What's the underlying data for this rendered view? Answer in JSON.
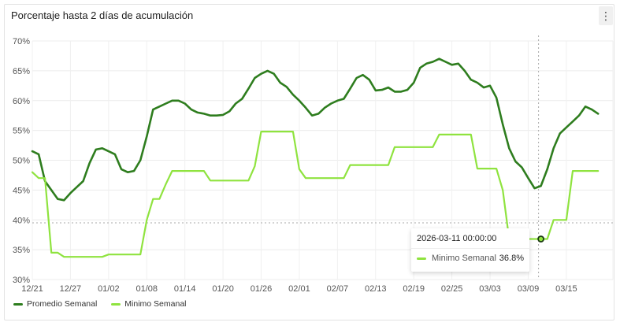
{
  "title": "Porcentaje hasta 2 días de acumulación",
  "menu_icon": "kebab-menu-icon",
  "colors": {
    "promedio": "#2e7d1e",
    "minimo": "#8fe33f"
  },
  "tooltip": {
    "date": "2026-03-11 00:00:00",
    "series": "Minimo Semanal",
    "value": "36.8%"
  },
  "chart_data": {
    "type": "line",
    "title": "Porcentaje hasta 2 días de acumulación",
    "xlabel": "",
    "ylabel": "",
    "ylim": [
      30,
      70
    ],
    "yticks": [
      "30%",
      "35%",
      "40%",
      "45%",
      "50%",
      "55%",
      "60%",
      "65%",
      "70%"
    ],
    "xticks": [
      "12/21",
      "12/27",
      "01/02",
      "01/08",
      "01/14",
      "01/20",
      "01/26",
      "02/01",
      "02/07",
      "02/13",
      "02/19",
      "02/25",
      "03/03",
      "03/09",
      "03/15"
    ],
    "grid": true,
    "legend": "bottom-left",
    "x": [
      "2025-12-21",
      "2025-12-22",
      "2025-12-23",
      "2025-12-24",
      "2025-12-25",
      "2025-12-26",
      "2025-12-27",
      "2025-12-28",
      "2025-12-29",
      "2025-12-30",
      "2025-12-31",
      "2026-01-01",
      "2026-01-02",
      "2026-01-03",
      "2026-01-04",
      "2026-01-05",
      "2026-01-06",
      "2026-01-07",
      "2026-01-08",
      "2026-01-09",
      "2026-01-10",
      "2026-01-11",
      "2026-01-12",
      "2026-01-13",
      "2026-01-14",
      "2026-01-15",
      "2026-01-16",
      "2026-01-17",
      "2026-01-18",
      "2026-01-19",
      "2026-01-20",
      "2026-01-21",
      "2026-01-22",
      "2026-01-23",
      "2026-01-24",
      "2026-01-25",
      "2026-01-26",
      "2026-01-27",
      "2026-01-28",
      "2026-01-29",
      "2026-01-30",
      "2026-01-31",
      "2026-02-01",
      "2026-02-02",
      "2026-02-03",
      "2026-02-04",
      "2026-02-05",
      "2026-02-06",
      "2026-02-07",
      "2026-02-08",
      "2026-02-09",
      "2026-02-10",
      "2026-02-11",
      "2026-02-12",
      "2026-02-13",
      "2026-02-14",
      "2026-02-15",
      "2026-02-16",
      "2026-02-17",
      "2026-02-18",
      "2026-02-19",
      "2026-02-20",
      "2026-02-21",
      "2026-02-22",
      "2026-02-23",
      "2026-02-24",
      "2026-02-25",
      "2026-02-26",
      "2026-02-27",
      "2026-02-28",
      "2026-03-01",
      "2026-03-02",
      "2026-03-03",
      "2026-03-04",
      "2026-03-05",
      "2026-03-06",
      "2026-03-07",
      "2026-03-08",
      "2026-03-09",
      "2026-03-10",
      "2026-03-11",
      "2026-03-12",
      "2026-03-13",
      "2026-03-14",
      "2026-03-15",
      "2026-03-16",
      "2026-03-17",
      "2026-03-18",
      "2026-03-19",
      "2026-03-20"
    ],
    "series": [
      {
        "name": "Promedio Semanal",
        "color": "#2e7d1e",
        "values": [
          51.5,
          51,
          46.5,
          45,
          43.5,
          43.3,
          44.5,
          45.5,
          46.5,
          49.5,
          51.8,
          52,
          51.5,
          51,
          48.5,
          48,
          48.2,
          50,
          54,
          58.5,
          59,
          59.5,
          60,
          60,
          59.5,
          58.5,
          58,
          57.8,
          57.5,
          57.5,
          57.6,
          58.2,
          59.5,
          60.3,
          62,
          63.8,
          64.5,
          65,
          64.5,
          63,
          62.3,
          61,
          60,
          58.8,
          57.5,
          57.8,
          58.8,
          59.5,
          60,
          60.3,
          62,
          63.8,
          64.3,
          63.5,
          61.7,
          61.8,
          62.2,
          61.5,
          61.5,
          61.8,
          63,
          65.5,
          66.2,
          66.5,
          67,
          66.5,
          66,
          66.2,
          65,
          63.5,
          63,
          62.2,
          62.5,
          60.5,
          56,
          52,
          49.8,
          48.8,
          47,
          45.3,
          45.7,
          48.5,
          52,
          54.5,
          55.5,
          56.5,
          57.5,
          59,
          58.5,
          57.8
        ]
      },
      {
        "name": "Minimo Semanal",
        "color": "#8fe33f",
        "values": [
          48,
          47,
          47,
          34.5,
          34.5,
          33.8,
          33.8,
          33.8,
          33.8,
          33.8,
          33.8,
          33.8,
          34.2,
          34.2,
          34.2,
          34.2,
          34.2,
          34.2,
          40,
          43.5,
          43.5,
          46,
          48.2,
          48.2,
          48.2,
          48.2,
          48.2,
          48.2,
          46.6,
          46.6,
          46.6,
          46.6,
          46.6,
          46.6,
          46.6,
          49,
          54.8,
          54.8,
          54.8,
          54.8,
          54.8,
          54.8,
          48.5,
          47,
          47,
          47,
          47,
          47,
          47,
          47,
          49.2,
          49.2,
          49.2,
          49.2,
          49.2,
          49.2,
          49.2,
          52.2,
          52.2,
          52.2,
          52.2,
          52.2,
          52.2,
          52.2,
          54.3,
          54.3,
          54.3,
          54.3,
          54.3,
          54.3,
          48.6,
          48.6,
          48.6,
          48.6,
          45,
          36.8,
          36.8,
          36.8,
          36.8,
          36.8,
          36.8,
          36.8,
          40,
          40,
          40,
          48.2,
          48.2,
          48.2,
          48.2,
          48.2
        ]
      }
    ]
  }
}
